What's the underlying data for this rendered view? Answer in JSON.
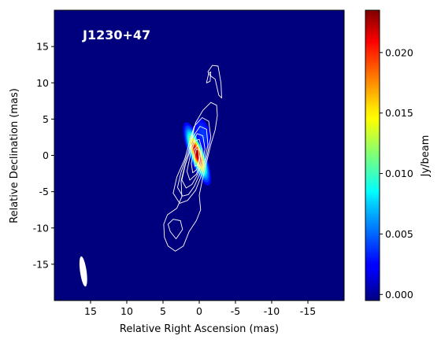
{
  "chart_data": {
    "type": "heatmap",
    "source_label": "J1230+47",
    "xlabel": "Relative Right Ascension (mas)",
    "ylabel": "Relative Declination (mas)",
    "xlim": [
      20,
      -20
    ],
    "ylim": [
      -20,
      20
    ],
    "xticks": [
      15,
      10,
      5,
      0,
      -5,
      -10,
      -15
    ],
    "yticks": [
      -15,
      -10,
      -5,
      0,
      5,
      10,
      15
    ],
    "colorbar": {
      "label": "Jy/beam",
      "range": [
        -0.0005,
        0.0235
      ],
      "ticks": [
        0.0,
        0.005,
        0.01,
        0.015,
        0.02
      ],
      "colormap": "jet"
    },
    "background_color": "#00007f",
    "contour_color": "#ffffff",
    "peak": {
      "ra": 0.3,
      "dec": 0.2,
      "flux": 0.0235
    },
    "components": [
      {
        "ra": 0.3,
        "dec": 0.2,
        "sigma_major": 2.2,
        "sigma_minor": 0.55,
        "pa_deg": -20,
        "amplitude": 0.0235
      },
      {
        "ra": -0.5,
        "dec": 3.0,
        "sigma_major": 2.0,
        "sigma_minor": 0.9,
        "pa_deg": -15,
        "amplitude": 0.004
      },
      {
        "ra": 1.2,
        "dec": -4.0,
        "sigma_major": 2.0,
        "sigma_minor": 0.8,
        "pa_deg": -20,
        "amplitude": 0.0015
      }
    ],
    "contours": [
      {
        "level": 1,
        "points": [
          [
            3.3,
            -13.2
          ],
          [
            4.3,
            -12.5
          ],
          [
            4.8,
            -11.3
          ],
          [
            4.9,
            -9.5
          ],
          [
            4.4,
            -8.2
          ],
          [
            3.1,
            -7.3
          ],
          [
            2.4,
            -5.7
          ],
          [
            2.5,
            -3.5
          ],
          [
            2.0,
            -1.5
          ],
          [
            1.3,
            0.5
          ],
          [
            1.0,
            2.5
          ],
          [
            0.5,
            4.5
          ],
          [
            -0.5,
            6.2
          ],
          [
            -1.6,
            7.3
          ],
          [
            -2.4,
            6.9
          ],
          [
            -2.5,
            5.5
          ],
          [
            -2.2,
            3.5
          ],
          [
            -1.6,
            1.5
          ],
          [
            -1.0,
            -1.0
          ],
          [
            -0.4,
            -3.5
          ],
          [
            0.0,
            -5.5
          ],
          [
            -0.2,
            -7.5
          ],
          [
            0.4,
            -9.0
          ],
          [
            1.4,
            -10.5
          ],
          [
            2.2,
            -12.5
          ]
        ]
      },
      {
        "level": 1,
        "points": [
          [
            -1.2,
            11.5
          ],
          [
            -1.8,
            12.4
          ],
          [
            -2.6,
            12.3
          ],
          [
            -3.0,
            10.0
          ],
          [
            -3.1,
            7.9
          ],
          [
            -2.7,
            8.3
          ],
          [
            -2.2,
            10.5
          ],
          [
            -1.5,
            11.0
          ]
        ]
      },
      {
        "level": 1,
        "points": [
          [
            -1.0,
            10.0
          ],
          [
            -1.3,
            11.3
          ],
          [
            -1.6,
            11.5
          ],
          [
            -1.5,
            10.2
          ]
        ]
      },
      {
        "level": 2,
        "points": [
          [
            3.2,
            -11.5
          ],
          [
            4.0,
            -10.5
          ],
          [
            4.3,
            -9.5
          ],
          [
            3.6,
            -8.8
          ],
          [
            2.6,
            -9.0
          ],
          [
            2.3,
            -10.2
          ]
        ]
      },
      {
        "level": 2,
        "points": [
          [
            2.7,
            -6.6
          ],
          [
            3.6,
            -5.2
          ],
          [
            3.1,
            -3.0
          ],
          [
            2.0,
            -0.5
          ],
          [
            1.3,
            2.0
          ],
          [
            0.7,
            4.0
          ],
          [
            -0.4,
            5.2
          ],
          [
            -1.3,
            4.7
          ],
          [
            -1.6,
            2.5
          ],
          [
            -1.1,
            0.0
          ],
          [
            -0.4,
            -2.5
          ],
          [
            0.5,
            -4.8
          ],
          [
            1.6,
            -6.2
          ]
        ]
      },
      {
        "level": 3,
        "points": [
          [
            2.3,
            -5.6
          ],
          [
            3.0,
            -4.4
          ],
          [
            2.5,
            -2.3
          ],
          [
            1.6,
            0.2
          ],
          [
            0.9,
            2.5
          ],
          [
            -0.1,
            4.0
          ],
          [
            -1.0,
            3.6
          ],
          [
            -1.2,
            1.5
          ],
          [
            -0.8,
            -0.5
          ],
          [
            -0.1,
            -2.5
          ],
          [
            0.7,
            -4.3
          ],
          [
            1.5,
            -5.4
          ]
        ]
      },
      {
        "level": 4,
        "points": [
          [
            1.8,
            -4.5
          ],
          [
            2.4,
            -3.4
          ],
          [
            1.9,
            -1.2
          ],
          [
            1.1,
            1.2
          ],
          [
            0.3,
            3.0
          ],
          [
            -0.5,
            2.7
          ],
          [
            -0.8,
            0.8
          ],
          [
            -0.4,
            -1.0
          ],
          [
            0.3,
            -2.8
          ],
          [
            1.0,
            -4.0
          ]
        ]
      },
      {
        "level": 5,
        "points": [
          [
            1.3,
            -3.4
          ],
          [
            1.7,
            -2.2
          ],
          [
            1.2,
            0.2
          ],
          [
            0.6,
            2.0
          ],
          [
            0.0,
            2.2
          ],
          [
            -0.4,
            0.8
          ],
          [
            -0.2,
            -1.0
          ],
          [
            0.4,
            -2.6
          ]
        ]
      },
      {
        "level": 6,
        "points": [
          [
            0.9,
            -2.4
          ],
          [
            1.1,
            -1.1
          ],
          [
            0.7,
            0.8
          ],
          [
            0.2,
            1.4
          ],
          [
            -0.2,
            0.5
          ],
          [
            0.0,
            -1.0
          ],
          [
            0.4,
            -2.0
          ]
        ]
      },
      {
        "level": 7,
        "points": [
          [
            0.6,
            -1.5
          ],
          [
            0.7,
            -0.3
          ],
          [
            0.4,
            0.9
          ],
          [
            0.1,
            0.8
          ],
          [
            0.0,
            -0.4
          ],
          [
            0.2,
            -1.3
          ]
        ]
      }
    ],
    "beam": {
      "ra": 16.0,
      "dec": -16.0,
      "major_mas": 4.2,
      "minor_mas": 0.9,
      "pa_deg": -8,
      "color": "#ffffff"
    }
  }
}
